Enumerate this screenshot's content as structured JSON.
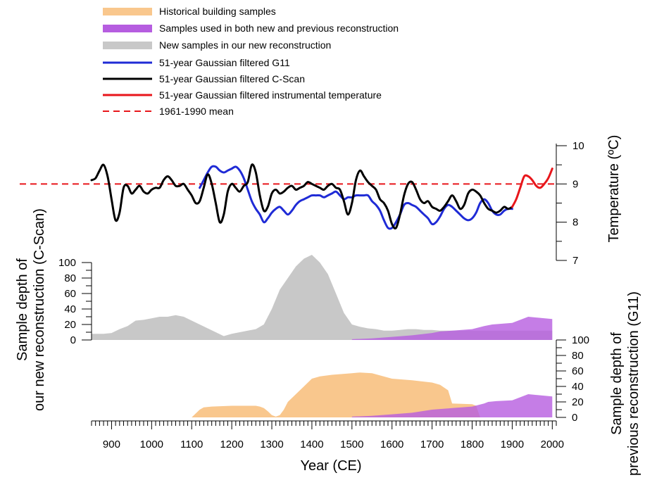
{
  "chart_data": {
    "type": "line",
    "legend": {
      "placement": "top",
      "entries": [
        {
          "label": "Historical building samples",
          "swatch": "area",
          "color": "#f9c78d"
        },
        {
          "label": "Samples used in both new and previous reconstruction",
          "swatch": "area",
          "color": "#b65de0"
        },
        {
          "label": "New samples in our new reconstruction",
          "swatch": "area",
          "color": "#c8c8c8"
        },
        {
          "label": "51-year Gaussian filtered G11",
          "swatch": "line",
          "color": "#1f2bd6"
        },
        {
          "label": "51-year Gaussian filtered C-Scan",
          "swatch": "line",
          "color": "#000000"
        },
        {
          "label": "51-year Gaussian filtered instrumental temperature",
          "swatch": "line",
          "color": "#e8161b"
        },
        {
          "label": "1961-1990 mean",
          "swatch": "dashed",
          "color": "#e8161b"
        }
      ]
    },
    "x_axis": {
      "label": "Year (CE)",
      "range": [
        850,
        2010
      ],
      "ticks": [
        "900",
        "1000",
        "1100",
        "1200",
        "1300",
        "1400",
        "1500",
        "1600",
        "1700",
        "1800",
        "1900",
        "2000"
      ]
    },
    "temperature_axis": {
      "label": "Temperature (ºC)",
      "range": [
        7,
        10
      ],
      "ticks": [
        "7",
        "8",
        "9",
        "10"
      ],
      "reference_mean": 9.0
    },
    "depth_new_axis": {
      "label_line1": "Sample depth of",
      "label_line2": "our new reconstruction (C-Scan)",
      "range": [
        0,
        100
      ],
      "ticks": [
        "0",
        "20",
        "40",
        "60",
        "80",
        "100"
      ]
    },
    "depth_prev_axis": {
      "label_line1": "Sample depth of",
      "label_line2": "previous reconstruction (G11)",
      "range": [
        0,
        100
      ],
      "ticks": [
        "0",
        "20",
        "40",
        "60",
        "80",
        "100"
      ]
    },
    "series": [
      {
        "name": "51-year Gaussian filtered C-Scan",
        "color": "#000000",
        "x": [
          850,
          860,
          870,
          880,
          890,
          900,
          910,
          920,
          930,
          940,
          950,
          960,
          970,
          980,
          990,
          1000,
          1010,
          1020,
          1030,
          1040,
          1050,
          1060,
          1070,
          1080,
          1090,
          1100,
          1110,
          1120,
          1130,
          1140,
          1150,
          1160,
          1170,
          1180,
          1190,
          1200,
          1210,
          1220,
          1230,
          1240,
          1250,
          1260,
          1270,
          1280,
          1290,
          1300,
          1310,
          1320,
          1330,
          1340,
          1350,
          1360,
          1370,
          1380,
          1390,
          1400,
          1410,
          1420,
          1430,
          1440,
          1450,
          1460,
          1470,
          1480,
          1490,
          1500,
          1510,
          1520,
          1530,
          1540,
          1550,
          1560,
          1570,
          1580,
          1590,
          1600,
          1610,
          1620,
          1630,
          1640,
          1650,
          1660,
          1670,
          1680,
          1690,
          1700,
          1710,
          1720,
          1730,
          1740,
          1750,
          1760,
          1770,
          1780,
          1790,
          1800,
          1810,
          1820,
          1830,
          1840,
          1850,
          1860,
          1870,
          1880,
          1890,
          1900
        ],
        "values": [
          9.1,
          9.15,
          9.35,
          9.5,
          9.2,
          8.6,
          8.05,
          8.25,
          8.9,
          8.95,
          8.75,
          8.85,
          8.95,
          8.8,
          8.75,
          8.85,
          8.9,
          8.9,
          9.1,
          9.2,
          9.1,
          8.95,
          8.95,
          9.0,
          8.85,
          8.7,
          8.5,
          8.55,
          8.9,
          9.25,
          9.0,
          8.5,
          8.0,
          8.2,
          8.8,
          9.0,
          8.9,
          8.8,
          8.95,
          9.05,
          9.5,
          9.3,
          8.7,
          8.3,
          8.4,
          8.75,
          8.85,
          8.75,
          8.8,
          8.9,
          8.95,
          8.85,
          8.9,
          8.95,
          9.05,
          9.0,
          8.95,
          8.9,
          8.85,
          8.95,
          9.0,
          8.9,
          8.85,
          8.55,
          8.2,
          8.5,
          9.1,
          9.35,
          9.2,
          9.05,
          8.95,
          8.85,
          8.6,
          8.5,
          8.3,
          7.95,
          7.85,
          8.2,
          8.7,
          9.0,
          9.05,
          8.85,
          8.6,
          8.5,
          8.55,
          8.4,
          8.35,
          8.3,
          8.4,
          8.55,
          8.7,
          8.55,
          8.35,
          8.45,
          8.75,
          8.85,
          8.8,
          8.7,
          8.5,
          8.35,
          8.3,
          8.25,
          8.3,
          8.4,
          8.35,
          8.4
        ]
      },
      {
        "name": "51-year Gaussian filtered G11",
        "color": "#1f2bd6",
        "x": [
          1120,
          1130,
          1140,
          1150,
          1160,
          1170,
          1180,
          1190,
          1200,
          1210,
          1220,
          1230,
          1240,
          1250,
          1260,
          1270,
          1280,
          1290,
          1300,
          1310,
          1320,
          1330,
          1340,
          1350,
          1360,
          1370,
          1380,
          1390,
          1400,
          1410,
          1420,
          1430,
          1440,
          1450,
          1460,
          1470,
          1480,
          1490,
          1500,
          1510,
          1520,
          1530,
          1540,
          1550,
          1560,
          1570,
          1580,
          1590,
          1600,
          1610,
          1620,
          1630,
          1640,
          1650,
          1660,
          1670,
          1680,
          1690,
          1700,
          1710,
          1720,
          1730,
          1740,
          1750,
          1760,
          1770,
          1780,
          1790,
          1800,
          1810,
          1820,
          1830,
          1840,
          1850,
          1860,
          1870,
          1880,
          1890,
          1900
        ],
        "values": [
          8.9,
          9.1,
          9.3,
          9.45,
          9.45,
          9.35,
          9.3,
          9.35,
          9.4,
          9.45,
          9.35,
          9.15,
          8.85,
          8.55,
          8.35,
          8.2,
          8.0,
          8.1,
          8.25,
          8.35,
          8.4,
          8.3,
          8.2,
          8.3,
          8.45,
          8.55,
          8.6,
          8.65,
          8.7,
          8.7,
          8.7,
          8.65,
          8.7,
          8.75,
          8.8,
          8.7,
          8.6,
          8.65,
          8.65,
          8.7,
          8.7,
          8.7,
          8.7,
          8.55,
          8.45,
          8.3,
          8.05,
          7.85,
          7.85,
          8.0,
          8.2,
          8.45,
          8.5,
          8.45,
          8.4,
          8.3,
          8.2,
          8.1,
          7.95,
          8.0,
          8.15,
          8.35,
          8.45,
          8.4,
          8.3,
          8.2,
          8.1,
          8.05,
          8.1,
          8.25,
          8.5,
          8.6,
          8.5,
          8.3,
          8.2,
          8.2,
          8.3,
          8.35,
          8.35
        ]
      },
      {
        "name": "51-year Gaussian filtered instrumental temperature",
        "color": "#e8161b",
        "x": [
          1900,
          1910,
          1920,
          1930,
          1940,
          1950,
          1960,
          1970,
          1980,
          1990,
          2000
        ],
        "values": [
          8.4,
          8.6,
          8.9,
          9.2,
          9.2,
          9.1,
          8.95,
          8.9,
          9.0,
          9.15,
          9.4
        ]
      }
    ],
    "sample_depth_new": {
      "x": [
        850,
        880,
        900,
        920,
        940,
        960,
        980,
        1000,
        1020,
        1040,
        1060,
        1080,
        1100,
        1120,
        1140,
        1160,
        1180,
        1200,
        1220,
        1240,
        1260,
        1280,
        1300,
        1320,
        1340,
        1360,
        1380,
        1400,
        1420,
        1440,
        1460,
        1480,
        1500,
        1520,
        1540,
        1560,
        1580,
        1600,
        1620,
        1640,
        1660,
        1680,
        1700,
        1720,
        1740,
        1760,
        1780,
        1800,
        1820,
        1840,
        1860,
        1880,
        1900,
        1920,
        1940,
        1960,
        1980,
        2000
      ],
      "values": [
        8,
        8,
        9,
        14,
        18,
        25,
        26,
        28,
        30,
        30,
        32,
        30,
        25,
        20,
        15,
        10,
        5,
        8,
        10,
        12,
        14,
        20,
        40,
        65,
        80,
        95,
        105,
        110,
        100,
        85,
        60,
        35,
        20,
        17,
        15,
        14,
        12,
        12,
        13,
        14,
        14,
        13,
        13,
        12,
        12,
        12,
        12,
        12,
        12,
        12,
        12,
        12,
        12,
        12,
        12,
        12,
        12,
        12
      ]
    },
    "sample_depth_shared": {
      "x": [
        1500,
        1550,
        1600,
        1650,
        1700,
        1720,
        1750,
        1800,
        1830,
        1850,
        1900,
        1940,
        1960,
        2000
      ],
      "values": [
        1,
        2,
        4,
        6,
        9,
        11,
        12,
        14,
        18,
        20,
        22,
        30,
        29,
        27
      ]
    },
    "sample_depth_historical": {
      "x": [
        1100,
        1110,
        1120,
        1130,
        1150,
        1200,
        1250,
        1260,
        1270,
        1280,
        1290,
        1300,
        1310,
        1320,
        1330,
        1340,
        1360,
        1380,
        1400,
        1420,
        1450,
        1500,
        1520,
        1550,
        1600,
        1650,
        1700,
        1720,
        1740,
        1750,
        1800,
        1810,
        1820
      ],
      "values": [
        0,
        5,
        10,
        13,
        14,
        15,
        15,
        15,
        14,
        12,
        8,
        3,
        1,
        3,
        10,
        20,
        30,
        40,
        50,
        53,
        55,
        57,
        58,
        57,
        50,
        48,
        45,
        42,
        35,
        18,
        17,
        15,
        0
      ]
    },
    "sample_depth_shared_prev": {
      "x": [
        1500,
        1550,
        1600,
        1650,
        1700,
        1750,
        1800,
        1830,
        1840,
        1860,
        1900,
        1940,
        1960,
        2000
      ],
      "values": [
        1,
        2,
        4,
        6,
        10,
        12,
        14,
        18,
        20,
        21,
        22,
        30,
        29,
        27
      ]
    }
  }
}
